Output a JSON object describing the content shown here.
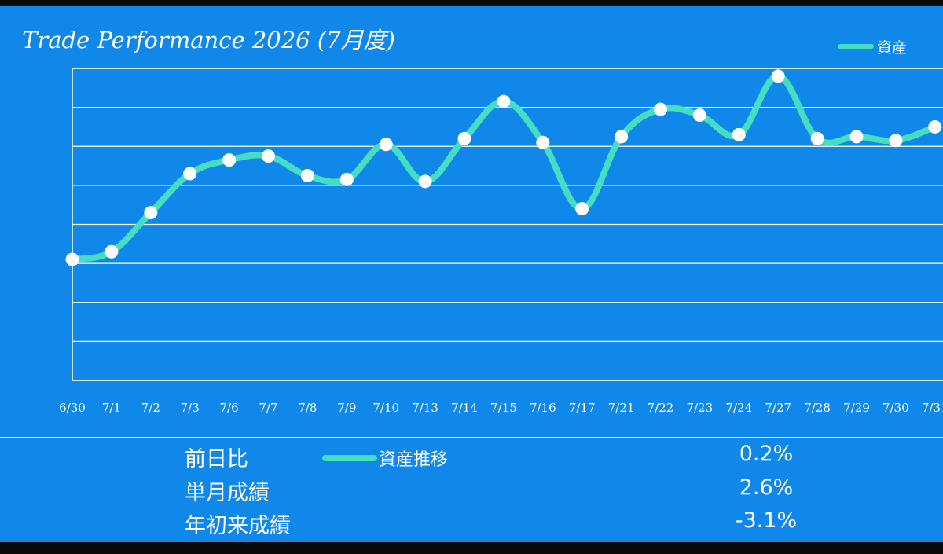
{
  "title": "Trade Performance 2026 (7月度)",
  "chart_data": {
    "type": "line",
    "title": "Trade Performance 2026 (7月度)",
    "categories": [
      "6/30",
      "7/1",
      "7/2",
      "7/3",
      "7/6",
      "7/7",
      "7/8",
      "7/9",
      "7/10",
      "7/13",
      "7/14",
      "7/15",
      "7/16",
      "7/17",
      "7/21",
      "7/22",
      "7/23",
      "7/24",
      "7/27",
      "7/28",
      "7/29",
      "7/30",
      "7/31"
    ],
    "series": [
      {
        "name": "資産",
        "values": [
          41,
          43,
          53,
          63,
          66.5,
          67.5,
          62.5,
          61.5,
          70.5,
          61,
          72,
          81.5,
          71,
          54,
          72.5,
          79.5,
          78,
          73,
          88,
          72,
          72.5,
          71.5,
          75
        ],
        "color": "#46ddc3"
      }
    ],
    "ylim": [
      10,
      90
    ],
    "y_gridlines": [
      10,
      20,
      30,
      40,
      50,
      60,
      70,
      80,
      90
    ],
    "y_tick_labels_visible": false,
    "grid": true,
    "legend_position": "top-right"
  },
  "legend": {
    "label": "資産",
    "color": "#46ddc3"
  },
  "stats": [
    {
      "label": "前日比",
      "value": "0.2%"
    },
    {
      "label": "単月成績",
      "value": "2.6%"
    },
    {
      "label": "年初来成績",
      "value": "-3.1%"
    }
  ],
  "footer_legend": {
    "label": "資産推移"
  }
}
